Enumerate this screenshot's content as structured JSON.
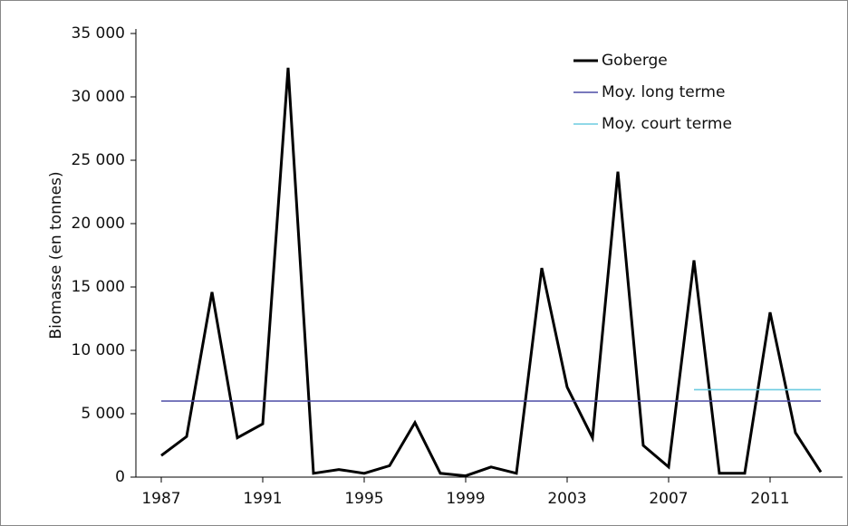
{
  "chart_data": {
    "type": "line",
    "y_label": "Biomasse (en tonnes)",
    "x": [
      1987,
      1988,
      1989,
      1990,
      1991,
      1992,
      1993,
      1994,
      1995,
      1996,
      1997,
      1998,
      1999,
      2000,
      2001,
      2002,
      2003,
      2004,
      2005,
      2006,
      2007,
      2008,
      2009,
      2010,
      2011,
      2012,
      2013
    ],
    "series": [
      {
        "name": "Goberge",
        "color": "#000000",
        "values": [
          1700,
          3200,
          14600,
          3100,
          4200,
          32300,
          300,
          600,
          300,
          900,
          4300,
          300,
          100,
          800,
          300,
          16500,
          7100,
          3100,
          24100,
          2500,
          800,
          17100,
          300,
          300,
          13000,
          3500,
          400
        ]
      },
      {
        "name": "Moy. long terme",
        "color": "#4b4ba6",
        "values": [
          6000,
          6000,
          6000,
          6000,
          6000,
          6000,
          6000,
          6000,
          6000,
          6000,
          6000,
          6000,
          6000,
          6000,
          6000,
          6000,
          6000,
          6000,
          6000,
          6000,
          6000,
          6000,
          6000,
          6000,
          6000,
          6000,
          6000
        ]
      },
      {
        "name": "Moy. court terme",
        "color": "#6ccbe0",
        "values": [
          null,
          null,
          null,
          null,
          null,
          null,
          null,
          null,
          null,
          null,
          null,
          null,
          null,
          null,
          null,
          null,
          null,
          null,
          null,
          null,
          null,
          6900,
          6900,
          6900,
          6900,
          6900,
          6900
        ]
      }
    ],
    "xlim": [
      1986,
      2014
    ],
    "xticks": [
      1987,
      1991,
      1995,
      1999,
      2003,
      2007,
      2011
    ],
    "ylim": [
      0,
      35000
    ],
    "yticks": [
      0,
      {
        "value": 5000,
        "label": "5 000"
      },
      {
        "value": 10000,
        "label": "10 000"
      },
      {
        "value": 15000,
        "label": "15 000"
      },
      {
        "value": 20000,
        "label": "20 000"
      },
      {
        "value": 25000,
        "label": "25 000"
      },
      {
        "value": 30000,
        "label": "30 000"
      },
      {
        "value": 35000,
        "label": "35 000"
      }
    ],
    "grid": false,
    "legend": "top-right"
  }
}
